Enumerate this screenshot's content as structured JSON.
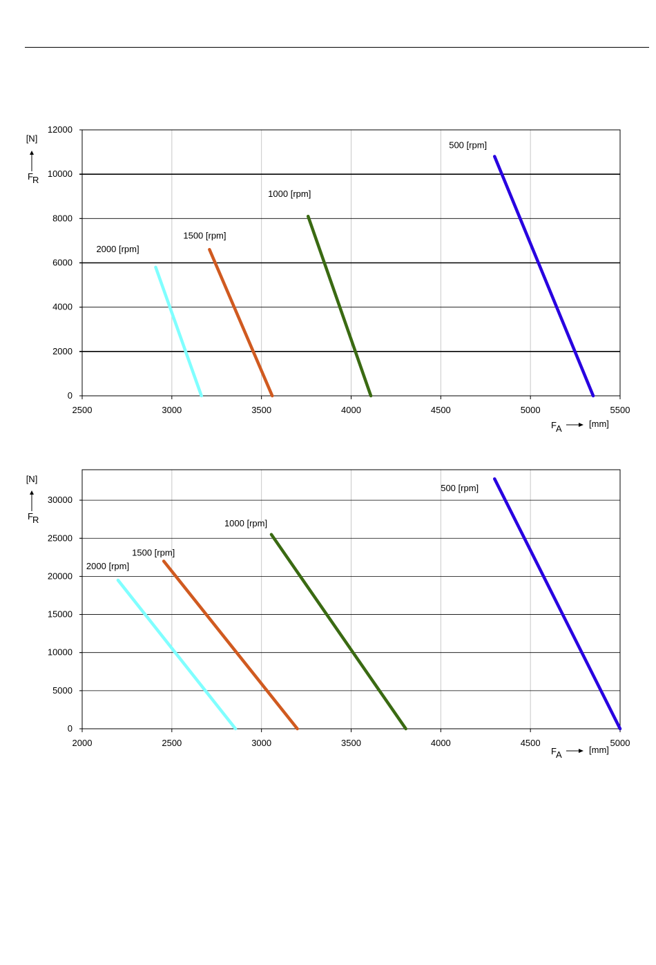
{
  "chart_data": [
    {
      "type": "line",
      "xlabel": "F",
      "xlabel_sub": "A",
      "xunit": "[mm]",
      "ylabel": "F",
      "ylabel_sub": "R",
      "yunit": "[N]",
      "xlim": [
        2500,
        5500
      ],
      "ylim": [
        0,
        12000
      ],
      "xticks": [
        2500,
        3000,
        3500,
        4000,
        4500,
        5000,
        5500
      ],
      "yticks": [
        0,
        2000,
        4000,
        6000,
        8000,
        10000,
        12000
      ],
      "grid": true,
      "series": [
        {
          "name": "2000 [rpm]",
          "color": "#80ffff",
          "x": [
            2910,
            3165
          ],
          "y": [
            5800,
            0
          ]
        },
        {
          "name": "1500 [rpm]",
          "color": "#d05a20",
          "x": [
            3210,
            3560
          ],
          "y": [
            6600,
            0
          ]
        },
        {
          "name": "1000 [rpm]",
          "color": "#3a6a12",
          "x": [
            3760,
            4110
          ],
          "y": [
            8100,
            0
          ]
        },
        {
          "name": "500 [rpm]",
          "color": "#2800e0",
          "x": [
            4800,
            5350
          ],
          "y": [
            10800,
            0
          ]
        }
      ]
    },
    {
      "type": "line",
      "xlabel": "F",
      "xlabel_sub": "A",
      "xunit": "[mm]",
      "ylabel": "F",
      "ylabel_sub": "R",
      "yunit": "[N]",
      "xlim": [
        2000,
        5000
      ],
      "ylim": [
        0,
        34000
      ],
      "xticks": [
        2000,
        2500,
        3000,
        3500,
        4000,
        4500,
        5000
      ],
      "yticks": [
        0,
        5000,
        10000,
        15000,
        20000,
        25000,
        30000
      ],
      "grid": true,
      "series": [
        {
          "name": "2000 [rpm]",
          "color": "#80ffff",
          "x": [
            2200,
            2855
          ],
          "y": [
            19500,
            0
          ]
        },
        {
          "name": "1500 [rpm]",
          "color": "#d05a20",
          "x": [
            2455,
            3200
          ],
          "y": [
            22000,
            0
          ]
        },
        {
          "name": "1000 [rpm]",
          "color": "#3a6a12",
          "x": [
            3055,
            3805
          ],
          "y": [
            25500,
            0
          ]
        },
        {
          "name": "500 [rpm]",
          "color": "#2800e0",
          "x": [
            4300,
            5000
          ],
          "y": [
            32800,
            0
          ]
        }
      ]
    }
  ]
}
